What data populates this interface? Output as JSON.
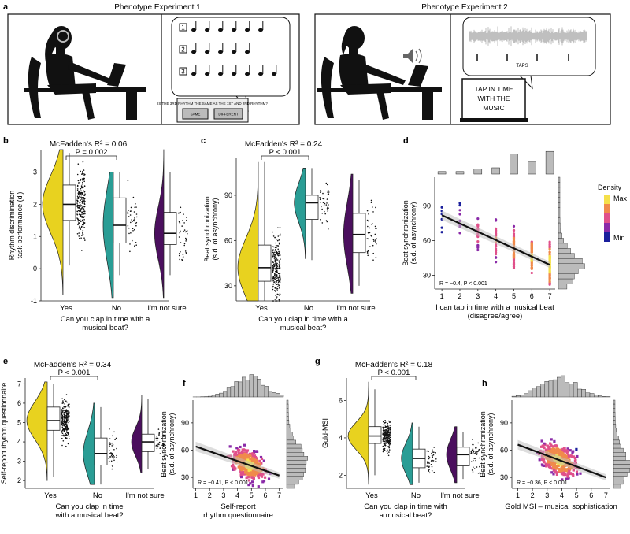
{
  "colors": {
    "yes": "#e8d21f",
    "no": "#2a9d95",
    "unsure": "#4b0f5e",
    "density_max": "#f5e04a",
    "density_mid": "#e0508a",
    "density_min": "#1a1f9c"
  },
  "panel_a": {
    "letter": "a",
    "exp1_title": "Phenotype Experiment 1",
    "exp2_title": "Phenotype Experiment 2",
    "rhythm_numbers": [
      "1",
      "2",
      "3"
    ],
    "screen1_text": "IS THE 3RD RHYTHM THE SAME AS THE 1ST AND 2ND RHYTHM?",
    "button_same": "SAME",
    "button_different": "DIFFERENT",
    "taps_label": "TAPS",
    "screen2_lines": [
      "TAP IN TIME",
      "WITH THE",
      "MUSIC"
    ]
  },
  "chart_data": [
    {
      "id": "b",
      "letter": "b",
      "type": "raincloud",
      "title": "McFadden's R² = 0.06",
      "comparison": "P = 0.002",
      "ylabel": "Rhythm discrimination task performance (d′)",
      "xlabel_lines": [
        "Can you clap in time with a",
        "musical beat?"
      ],
      "categories": [
        "Yes",
        "No",
        "I'm not sure"
      ],
      "ylim": [
        -1,
        3.7
      ],
      "yticks": [
        -1,
        0,
        1,
        2,
        3
      ],
      "box": [
        {
          "q1": 1.5,
          "median": 2.0,
          "q3": 2.6,
          "min": 0.1,
          "max": 3.6
        },
        {
          "q1": 0.8,
          "median": 1.35,
          "q3": 2.2,
          "min": -0.2,
          "max": 3.0
        },
        {
          "q1": 0.75,
          "median": 1.1,
          "q3": 1.75,
          "min": -0.2,
          "max": 3.0
        }
      ],
      "violin_range": [
        [
          -0.8,
          3.7
        ],
        [
          -0.9,
          3.0
        ],
        [
          -0.9,
          3.7
        ]
      ],
      "violin_width": [
        1.0,
        0.5,
        0.45
      ]
    },
    {
      "id": "c",
      "letter": "c",
      "type": "raincloud",
      "title": "McFadden's R² = 0.24",
      "comparison": "P < 0.001",
      "ylabel": "Beat synchronization (s.d. of asynchrony)",
      "xlabel_lines": [
        "Can you clap in time with a",
        "musical beat?"
      ],
      "categories": [
        "Yes",
        "No",
        "I'm not sure"
      ],
      "ylim": [
        20,
        115
      ],
      "yticks": [
        30,
        60,
        90
      ],
      "box": [
        {
          "q1": 33,
          "median": 42,
          "q3": 57,
          "min": 20,
          "max": 112
        },
        {
          "q1": 74,
          "median": 85,
          "q3": 90,
          "min": 47,
          "max": 108
        },
        {
          "q1": 52,
          "median": 64,
          "q3": 78,
          "min": 30,
          "max": 100
        }
      ],
      "violin_range": [
        [
          20,
          112
        ],
        [
          48,
          108
        ],
        [
          25,
          104
        ]
      ],
      "violin_width": [
        1.0,
        0.55,
        0.45
      ]
    },
    {
      "id": "d",
      "letter": "d",
      "type": "scatter",
      "ylabel": "Beat synchronization (s.d. of asynchrony)",
      "xlabel_lines": [
        "I can tap in time with a musical beat",
        "(disagree/agree)"
      ],
      "xlim": [
        0.6,
        7.3
      ],
      "ylim": [
        18,
        115
      ],
      "xticks": [
        1,
        2,
        3,
        4,
        5,
        6,
        7
      ],
      "yticks": [
        30,
        60,
        90
      ],
      "fit": {
        "x": [
          1,
          7
        ],
        "y": [
          82,
          39
        ]
      },
      "stat": "R = −0.4, P < 0.001",
      "legend": {
        "title": "Density",
        "max": "Max",
        "min": "Min"
      },
      "x_hist": [
        1,
        1,
        2,
        3,
        9,
        6,
        10
      ]
    },
    {
      "id": "e",
      "letter": "e",
      "type": "raincloud",
      "title": "McFadden's R² = 0.34",
      "comparison": "P < 0.001",
      "ylabel": "Self-report rhythm questionnaire",
      "xlabel_lines": [
        "Can you clap in time",
        "with a musical beat?"
      ],
      "categories": [
        "Yes",
        "No",
        "I'm not sure"
      ],
      "ylim": [
        1.6,
        7.3
      ],
      "yticks": [
        2,
        3,
        4,
        5,
        6,
        7
      ],
      "box": [
        {
          "q1": 4.6,
          "median": 5.1,
          "q3": 5.8,
          "min": 2.2,
          "max": 7
        },
        {
          "q1": 2.8,
          "median": 3.4,
          "q3": 4.2,
          "min": 1.8,
          "max": 5.8
        },
        {
          "q1": 3.5,
          "median": 4.0,
          "q3": 4.4,
          "min": 2.6,
          "max": 6.2
        }
      ],
      "violin_range": [
        [
          2.0,
          7.1
        ],
        [
          1.8,
          6.0
        ],
        [
          2.4,
          6.4
        ]
      ],
      "violin_width": [
        1.0,
        0.55,
        0.5
      ]
    },
    {
      "id": "f",
      "letter": "f",
      "type": "scatter",
      "ylabel": "Beat synchronization (s.d. of asynchrony)",
      "xlabel_lines": [
        "Self-report",
        "rhythm questionnaire"
      ],
      "xlim": [
        0.8,
        7.3
      ],
      "ylim": [
        18,
        115
      ],
      "xticks": [
        1,
        2,
        3,
        4,
        5,
        6,
        7
      ],
      "yticks": [
        30,
        60,
        90
      ],
      "fit": {
        "x": [
          1,
          7
        ],
        "y": [
          64,
          32
        ]
      },
      "stat": "R = −0.41, P < 0.001"
    },
    {
      "id": "g",
      "letter": "g",
      "type": "raincloud",
      "title": "McFadden's R² = 0.18",
      "comparison": "P < 0.001",
      "ylabel": "Gold-MSI",
      "xlabel_lines": [
        "Can you clap in time with",
        "a musical beat?"
      ],
      "categories": [
        "Yes",
        "No",
        "I'm not sure"
      ],
      "ylim": [
        1.3,
        7.2
      ],
      "yticks": [
        2,
        4,
        6
      ],
      "box": [
        {
          "q1": 3.7,
          "median": 4.1,
          "q3": 4.6,
          "min": 2.0,
          "max": 6.6
        },
        {
          "q1": 2.4,
          "median": 2.9,
          "q3": 3.4,
          "min": 1.6,
          "max": 4.6
        },
        {
          "q1": 2.5,
          "median": 3.1,
          "q3": 3.5,
          "min": 1.8,
          "max": 4.3
        }
      ],
      "violin_range": [
        [
          1.5,
          7.0
        ],
        [
          1.5,
          4.8
        ],
        [
          1.6,
          4.6
        ]
      ],
      "violin_width": [
        1.0,
        0.55,
        0.5
      ]
    },
    {
      "id": "h",
      "letter": "h",
      "type": "scatter",
      "ylabel": "Beat synchronization (s.d. of asynchrony)",
      "xlabel_lines": [
        "Gold MSI – musical sophistication"
      ],
      "xlim": [
        0.6,
        7.3
      ],
      "ylim": [
        18,
        115
      ],
      "xticks": [
        1,
        2,
        3,
        4,
        5,
        6,
        7
      ],
      "yticks": [
        30,
        60,
        90
      ],
      "fit": {
        "x": [
          1,
          7
        ],
        "y": [
          66,
          30
        ]
      },
      "stat": "R = −0.36, P < 0.001"
    }
  ]
}
